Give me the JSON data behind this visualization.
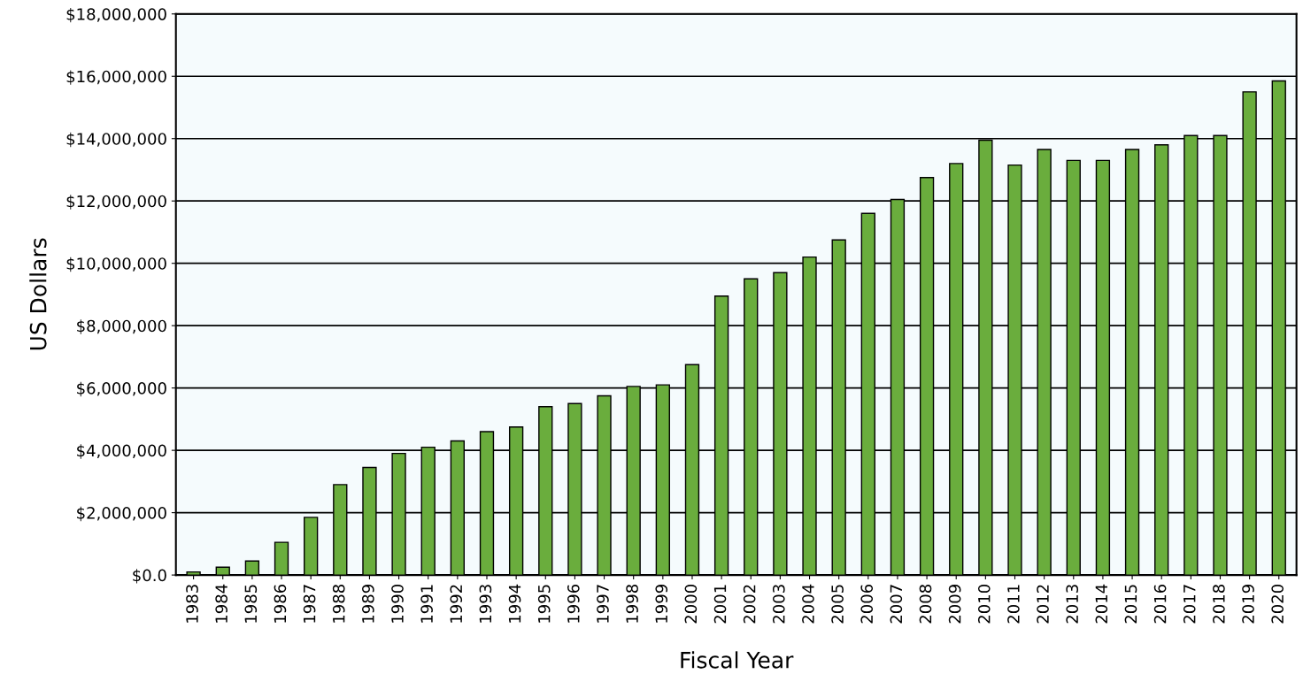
{
  "chart_data": {
    "type": "bar",
    "xlabel": "Fiscal Year",
    "ylabel": "US Dollars",
    "categories": [
      "1983",
      "1984",
      "1985",
      "1986",
      "1987",
      "1988",
      "1989",
      "1990",
      "1991",
      "1992",
      "1993",
      "1994",
      "1995",
      "1996",
      "1997",
      "1998",
      "1999",
      "2000",
      "2001",
      "2002",
      "2003",
      "2004",
      "2005",
      "2006",
      "2007",
      "2008",
      "2009",
      "2010",
      "2011",
      "2012",
      "2013",
      "2014",
      "2015",
      "2016",
      "2017",
      "2018",
      "2019",
      "2020"
    ],
    "values": [
      100000,
      250000,
      450000,
      1050000,
      1850000,
      2900000,
      3450000,
      3900000,
      4100000,
      4300000,
      4600000,
      4750000,
      5400000,
      5500000,
      5750000,
      6050000,
      6100000,
      6750000,
      8950000,
      9500000,
      9700000,
      10200000,
      10750000,
      11600000,
      12050000,
      12750000,
      13200000,
      13950000,
      13150000,
      13650000,
      13300000,
      13300000,
      13650000,
      13800000,
      14100000,
      14100000,
      15500000,
      15850000
    ],
    "color": "#6aad3d",
    "ylim": [
      0,
      18000000
    ],
    "yticks": [
      {
        "value": 0,
        "label": "$0.0"
      },
      {
        "value": 2000000,
        "label": "$2,000,000"
      },
      {
        "value": 4000000,
        "label": "$4,000,000"
      },
      {
        "value": 6000000,
        "label": "$6,000,000"
      },
      {
        "value": 8000000,
        "label": "$8,000,000"
      },
      {
        "value": 10000000,
        "label": "$10,000,000"
      },
      {
        "value": 12000000,
        "label": "$12,000,000"
      },
      {
        "value": 14000000,
        "label": "$14,000,000"
      },
      {
        "value": 16000000,
        "label": "$16,000,000"
      },
      {
        "value": 18000000,
        "label": "$18,000,000"
      }
    ],
    "grid": "y"
  }
}
